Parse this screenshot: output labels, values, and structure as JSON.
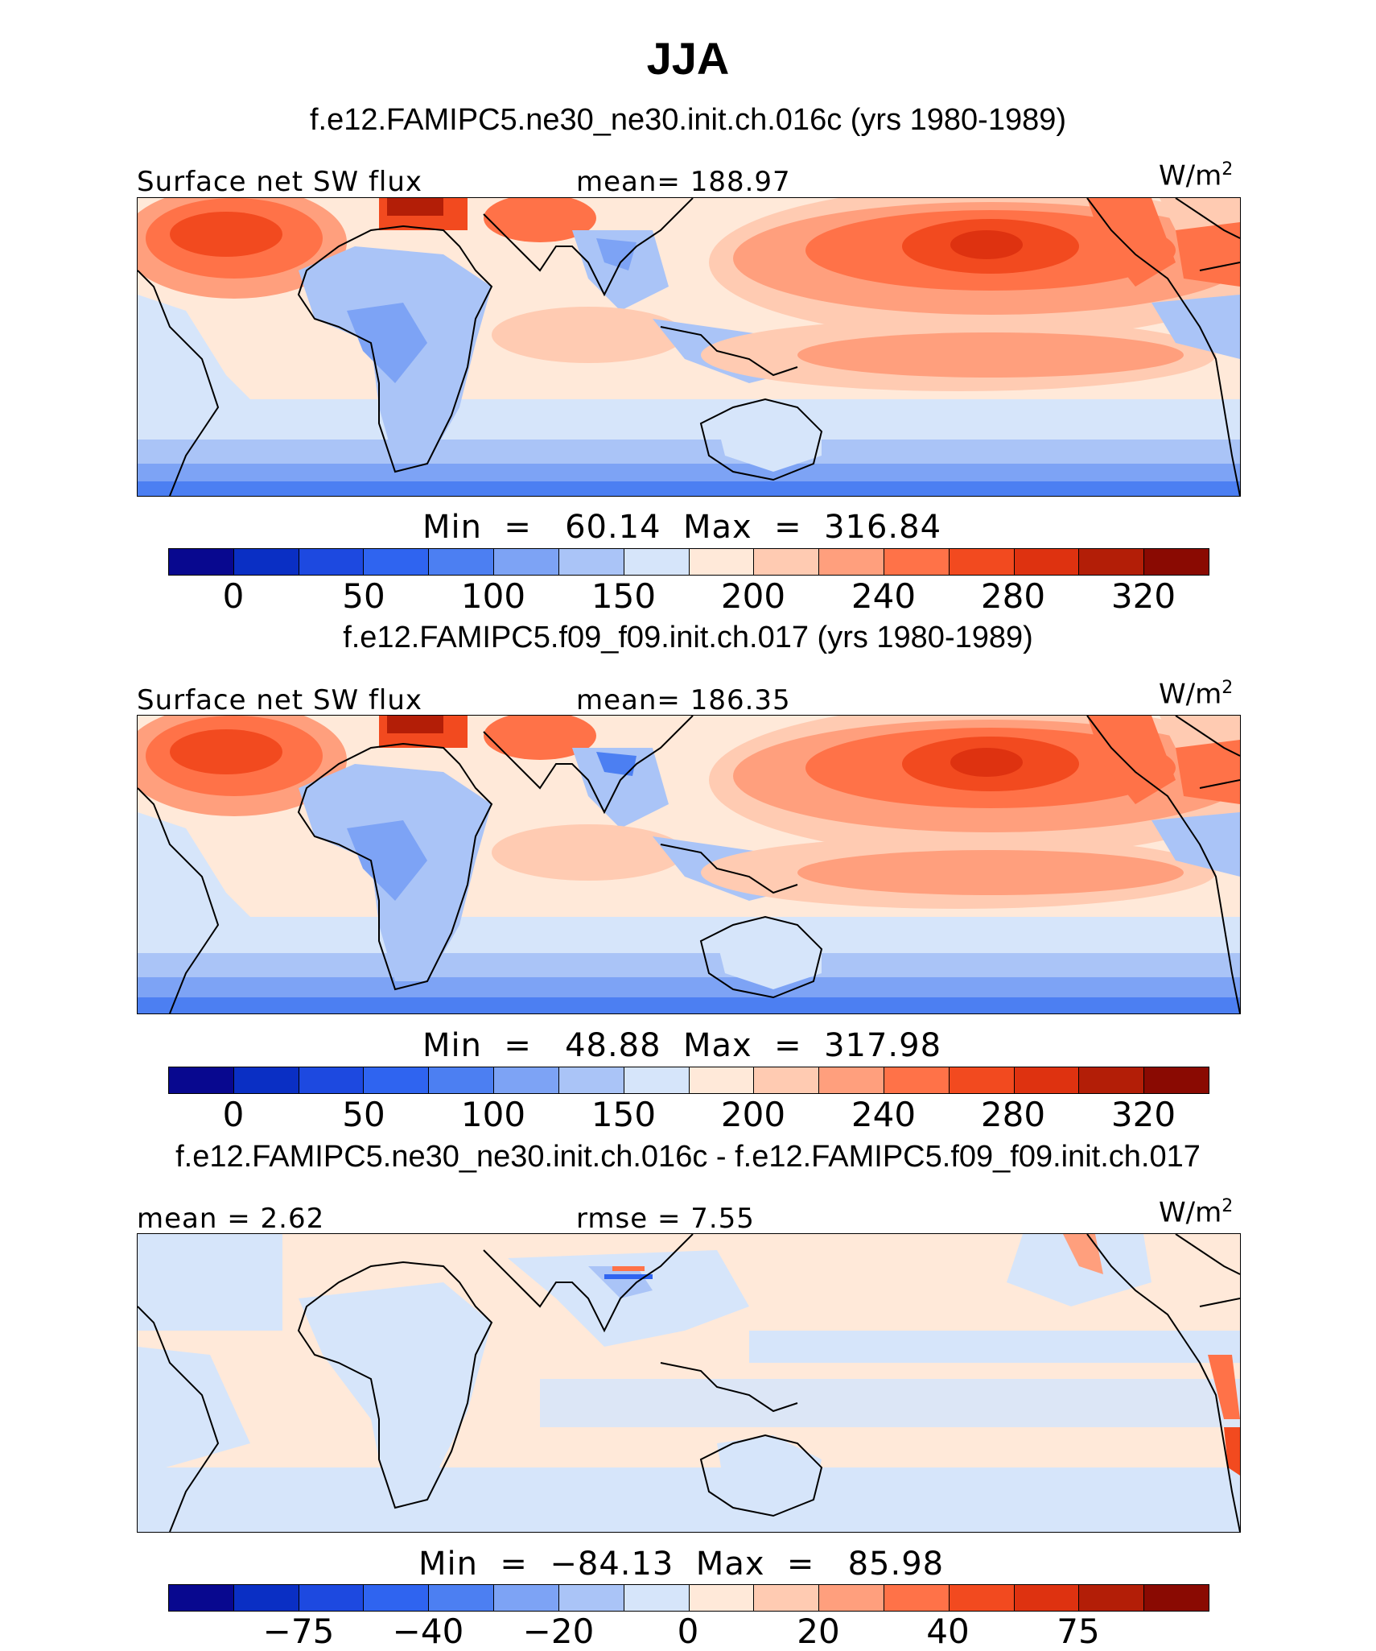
{
  "title": "JJA",
  "colors": [
    "#08088f",
    "#0a2fc4",
    "#1d49e0",
    "#2f64f0",
    "#4c7ff2",
    "#7da3f5",
    "#aac4f7",
    "#d6e5fa",
    "#ffe9d9",
    "#ffcbb2",
    "#ff9f7d",
    "#ff7248",
    "#f24a1f",
    "#de3210",
    "#b31e07",
    "#8a0a02"
  ],
  "panels": [
    {
      "case_title": "f.e12.FAMIPC5.ne30_ne30.init.ch.016c (yrs 1980-1989)",
      "left_label": "Surface net SW flux",
      "mid_label": "mean=  188.97",
      "units": "W/m",
      "units_sup": "2",
      "minmax": "Min  =   60.14  Max  =  316.84",
      "ticks": [
        "0",
        "50",
        "100",
        "150",
        "200",
        "240",
        "280",
        "320"
      ]
    },
    {
      "case_title": "f.e12.FAMIPC5.f09_f09.init.ch.017 (yrs 1980-1989)",
      "left_label": "Surface net SW flux",
      "mid_label": "mean=  186.35",
      "units": "W/m",
      "units_sup": "2",
      "minmax": "Min  =   48.88  Max  =  317.98",
      "ticks": [
        "0",
        "50",
        "100",
        "150",
        "200",
        "240",
        "280",
        "320"
      ]
    },
    {
      "case_title": "f.e12.FAMIPC5.ne30_ne30.init.ch.016c - f.e12.FAMIPC5.f09_f09.init.ch.017",
      "left_label": "mean  =    2.62",
      "mid_label": "rmse  =    7.55",
      "units": "W/m",
      "units_sup": "2",
      "minmax": "Min  =  −84.13  Max  =   85.98",
      "ticks": [
        "−75",
        "−40",
        "−20",
        "0",
        "20",
        "40",
        "75"
      ]
    }
  ]
}
